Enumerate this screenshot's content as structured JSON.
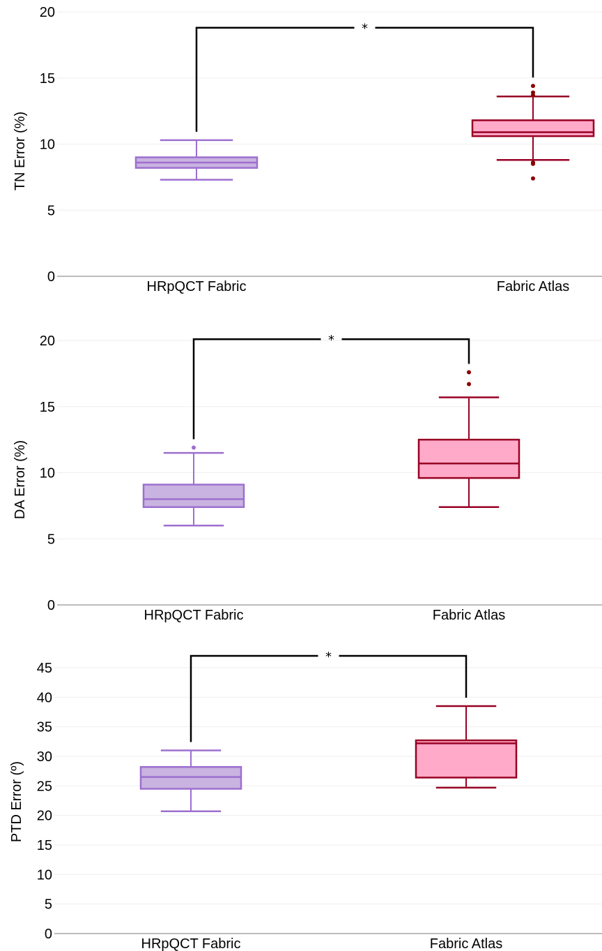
{
  "chart_data": [
    {
      "type": "box",
      "ylabel": "TN Error (%)",
      "ylim": [
        0,
        20
      ],
      "yticks": [
        "0",
        "5",
        "10",
        "15",
        "20"
      ],
      "categories": [
        "HRpQCT Fabric",
        "Fabric Atlas"
      ],
      "boxes": [
        {
          "name": "HRpQCT Fabric",
          "min": 7.3,
          "q1": 8.2,
          "median": 8.6,
          "q3": 9.0,
          "max": 10.3,
          "outliers": []
        },
        {
          "name": "Fabric Atlas",
          "min": 8.8,
          "q1": 10.6,
          "median": 10.9,
          "q3": 11.8,
          "max": 13.6,
          "outliers": [
            14.4,
            13.9,
            13.7,
            8.6,
            8.5,
            7.4
          ]
        }
      ],
      "significance": {
        "label": "*",
        "level": 18.8,
        "from": "HRpQCT Fabric",
        "to": "Fabric Atlas"
      }
    },
    {
      "type": "box",
      "ylabel": "DA Error (%)",
      "ylim": [
        0,
        20
      ],
      "yticks": [
        "0",
        "5",
        "10",
        "15",
        "20"
      ],
      "categories": [
        "HRpQCT Fabric",
        "Fabric Atlas"
      ],
      "boxes": [
        {
          "name": "HRpQCT Fabric",
          "min": 6.0,
          "q1": 7.4,
          "median": 8.0,
          "q3": 9.1,
          "max": 11.5,
          "outliers": [
            11.9
          ]
        },
        {
          "name": "Fabric Atlas",
          "min": 7.4,
          "q1": 9.6,
          "median": 10.7,
          "q3": 12.5,
          "max": 15.7,
          "outliers": [
            16.7,
            17.6
          ]
        }
      ],
      "significance": {
        "label": "*",
        "level": 20.1,
        "from": "HRpQCT Fabric",
        "to": "Fabric Atlas"
      }
    },
    {
      "type": "box",
      "ylabel": "PTD Error (º)",
      "ylim": [
        0,
        47
      ],
      "yticks": [
        "0",
        "5",
        "10",
        "15",
        "20",
        "25",
        "30",
        "35",
        "40",
        "45"
      ],
      "categories": [
        "HRpQCT Fabric",
        "Fabric Atlas"
      ],
      "boxes": [
        {
          "name": "HRpQCT Fabric",
          "min": 20.7,
          "q1": 24.5,
          "median": 26.5,
          "q3": 28.2,
          "max": 31.0,
          "outliers": []
        },
        {
          "name": "Fabric Atlas",
          "min": 24.7,
          "q1": 26.4,
          "median": 32.2,
          "q3": 32.7,
          "max": 38.5,
          "outliers": []
        }
      ],
      "significance": {
        "label": "*",
        "level": 47.0,
        "from": "HRpQCT Fabric",
        "to": "Fabric Atlas"
      }
    }
  ],
  "colors": {
    "hrpqct_fill": "#c9b3e0",
    "hrpqct_stroke": "#9d6fcf",
    "atlas_fill": "#ffaac8",
    "atlas_stroke": "#980024",
    "atlas_outlier": "#8b0000",
    "axis": "#a6a6a6",
    "grid": "#eeeeee",
    "bracket": "#000000"
  }
}
